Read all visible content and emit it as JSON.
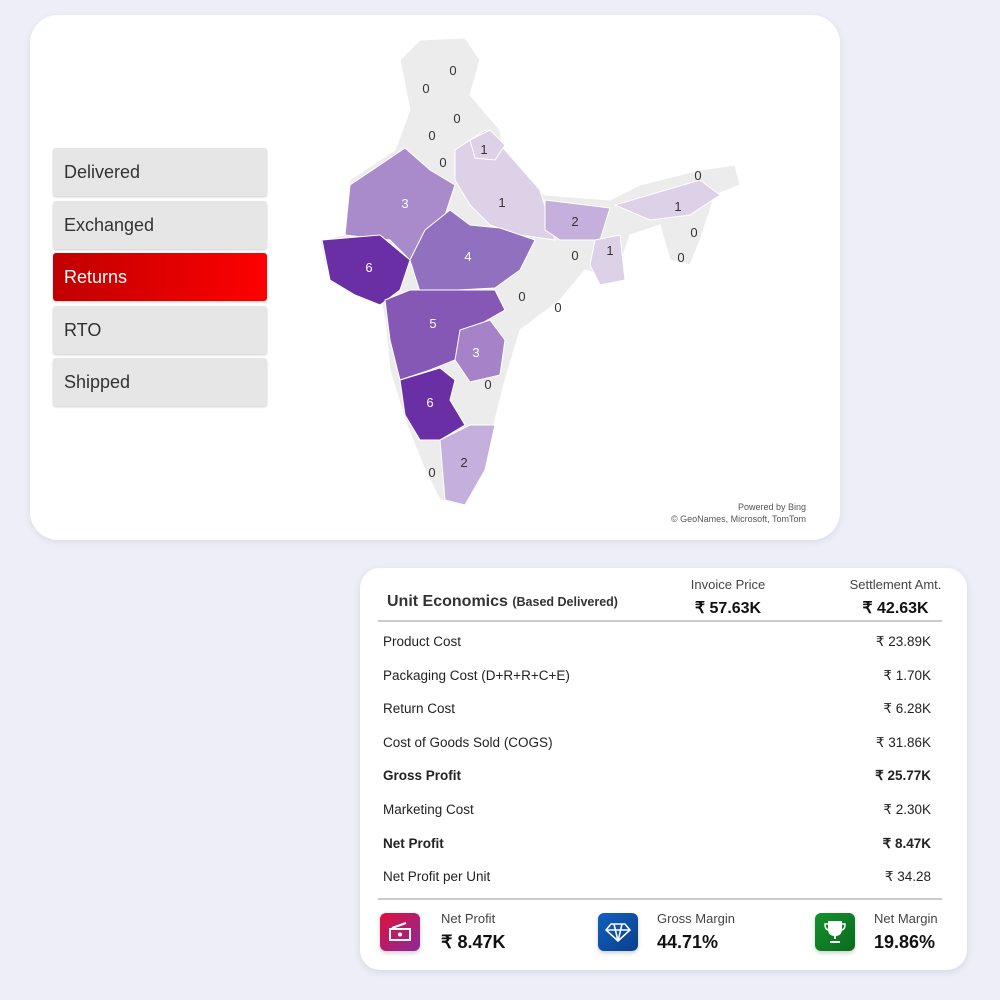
{
  "filters": [
    {
      "label": "Delivered",
      "selected": false
    },
    {
      "label": "Exchanged",
      "selected": false
    },
    {
      "label": "Returns",
      "selected": true
    },
    {
      "label": "RTO",
      "selected": false
    },
    {
      "label": "Shipped",
      "selected": false
    }
  ],
  "map": {
    "credit1": "Powered by Bing",
    "credit2": "© GeoNames, Microsoft, TomTom",
    "colors": {
      "zero": "#ececec",
      "low": "#d9cbe6",
      "mid": "#a682c8",
      "high": "#6b2fa5"
    },
    "values": [
      "0",
      "0",
      "0",
      "0",
      "1",
      "0",
      "3",
      "1",
      "2",
      "0",
      "1",
      "0",
      "0",
      "6",
      "4",
      "0",
      "1",
      "0",
      "0",
      "5",
      "3",
      "0",
      "6",
      "0",
      "2"
    ]
  },
  "unit": {
    "title": "Unit Economics",
    "subtitle": "(Based Delivered)",
    "invoice_label": "Invoice Price",
    "invoice_value": "₹ 57.63K",
    "settlement_label": "Settlement Amt.",
    "settlement_value": "₹ 42.63K",
    "rows": [
      {
        "label": "Product Cost",
        "value": "₹ 23.89K"
      },
      {
        "label": "Packaging Cost (D+R+R+C+E)",
        "value": "₹ 1.70K"
      },
      {
        "label": "Return Cost",
        "value": "₹ 6.28K"
      },
      {
        "label": "Cost of Goods Sold (COGS)",
        "value": "₹ 31.86K"
      },
      {
        "label": "Gross Profit",
        "value": "₹ 25.77K"
      },
      {
        "label": "Marketing Cost",
        "value": "₹ 2.30K"
      },
      {
        "label": "Net Profit",
        "value": "₹ 8.47K"
      },
      {
        "label": "Net Profit per Unit",
        "value": "₹ 34.28"
      }
    ],
    "kpis": [
      {
        "label": "Net Profit",
        "value": "₹ 8.47K",
        "icon": "money-icon"
      },
      {
        "label": "Gross Margin",
        "value": "44.71%",
        "icon": "diamond-icon"
      },
      {
        "label": "Net Margin",
        "value": "19.86%",
        "icon": "trophy-icon"
      }
    ]
  }
}
